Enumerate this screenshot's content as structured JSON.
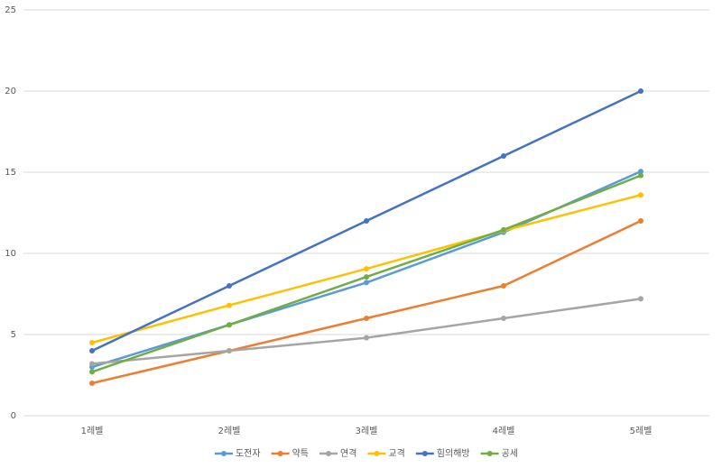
{
  "chart_data": {
    "type": "line",
    "categories": [
      "1레벨",
      "2레벨",
      "3레벨",
      "4레벨",
      "5레벨"
    ],
    "series": [
      {
        "name": "도전자",
        "color": "#5b9bd5",
        "values": [
          3.0,
          5.6,
          8.2,
          11.3,
          15.05
        ]
      },
      {
        "name": "약특",
        "color": "#ed7d31",
        "values": [
          2,
          4,
          6,
          8,
          12
        ]
      },
      {
        "name": "연격",
        "color": "#a5a5a5",
        "values": [
          3.2,
          4.0,
          4.8,
          6.0,
          7.2
        ]
      },
      {
        "name": "교격",
        "color": "#ffc000",
        "values": [
          4.5,
          6.8,
          9.05,
          11.4,
          13.6
        ]
      },
      {
        "name": "힘의해방",
        "color": "#4472c4",
        "values": [
          4,
          8,
          12,
          16,
          20
        ]
      },
      {
        "name": "공세",
        "color": "#70ad47",
        "values": [
          2.7,
          5.6,
          8.55,
          11.45,
          14.8
        ]
      }
    ],
    "ylim": [
      0,
      25
    ],
    "yticks": [
      0,
      5,
      10,
      15,
      20,
      25
    ],
    "grid": true,
    "legend": "bottom"
  }
}
